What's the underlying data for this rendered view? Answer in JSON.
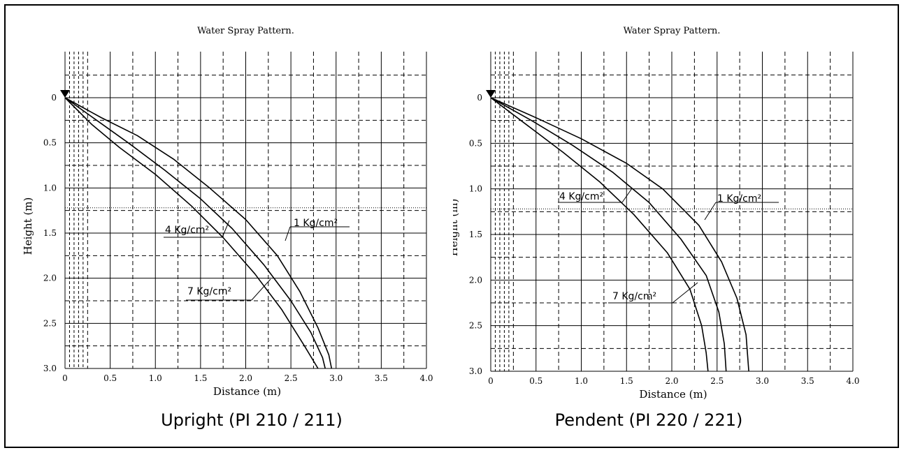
{
  "captions": {
    "left": "Upright (PI 210 / 211)",
    "right": "Pendent (PI 220 / 221)"
  },
  "chart_data": [
    {
      "type": "line",
      "title": "Water Spray Pattern.",
      "xlabel": "Distance (m)",
      "ylabel": "Height (m)",
      "xlim": [
        0,
        4.0
      ],
      "ylim": [
        0,
        3.0
      ],
      "y_inverted": true,
      "x_ticks": [
        "0",
        "0.5",
        "1.0",
        "1.5",
        "2.0",
        "2.5",
        "3.0",
        "3.5",
        "4.0"
      ],
      "y_ticks": [
        "0",
        "0.5",
        "1.0",
        "1.5",
        "2.0",
        "2.5",
        "3.0"
      ],
      "grid": true,
      "series": [
        {
          "name": "1 Kg/cm²",
          "points": [
            [
              0,
              0
            ],
            [
              0.4,
              0.22
            ],
            [
              0.8,
              0.42
            ],
            [
              1.2,
              0.68
            ],
            [
              1.6,
              1.0
            ],
            [
              2.0,
              1.35
            ],
            [
              2.35,
              1.75
            ],
            [
              2.6,
              2.15
            ],
            [
              2.8,
              2.55
            ],
            [
              2.92,
              2.85
            ],
            [
              2.95,
              3.0
            ]
          ]
        },
        {
          "name": "4 Kg/cm²",
          "points": [
            [
              0,
              0
            ],
            [
              0.35,
              0.25
            ],
            [
              0.7,
              0.5
            ],
            [
              1.1,
              0.8
            ],
            [
              1.5,
              1.12
            ],
            [
              1.85,
              1.45
            ],
            [
              2.2,
              1.85
            ],
            [
              2.5,
              2.25
            ],
            [
              2.72,
              2.6
            ],
            [
              2.85,
              2.88
            ],
            [
              2.88,
              3.0
            ]
          ]
        },
        {
          "name": "7 Kg/cm²",
          "points": [
            [
              0,
              0
            ],
            [
              0.3,
              0.3
            ],
            [
              0.6,
              0.55
            ],
            [
              1.0,
              0.85
            ],
            [
              1.4,
              1.2
            ],
            [
              1.75,
              1.55
            ],
            [
              2.1,
              1.95
            ],
            [
              2.4,
              2.35
            ],
            [
              2.65,
              2.75
            ],
            [
              2.8,
              3.0
            ]
          ]
        }
      ],
      "annotations": [
        "1 Kg/cm²",
        "4 Kg/cm²",
        "7 Kg/cm²"
      ]
    },
    {
      "type": "line",
      "title": "Water Spray Pattern.",
      "xlabel": "Distance (m)",
      "ylabel": "Height (m)",
      "xlim": [
        0,
        4.0
      ],
      "ylim": [
        0,
        3.0
      ],
      "y_inverted": true,
      "x_ticks": [
        "0",
        "0.5",
        "1.0",
        "1.5",
        "2.0",
        "2.5",
        "3.0",
        "3.5",
        "4.0"
      ],
      "y_ticks": [
        "0",
        "0.5",
        "1.0",
        "1.5",
        "2.0",
        "2.5",
        "3.0"
      ],
      "grid": true,
      "series": [
        {
          "name": "1 Kg/cm²",
          "points": [
            [
              0,
              0
            ],
            [
              0.5,
              0.22
            ],
            [
              1.0,
              0.45
            ],
            [
              1.5,
              0.72
            ],
            [
              1.9,
              1.0
            ],
            [
              2.3,
              1.4
            ],
            [
              2.55,
              1.8
            ],
            [
              2.72,
              2.2
            ],
            [
              2.82,
              2.6
            ],
            [
              2.85,
              3.0
            ]
          ]
        },
        {
          "name": "4 Kg/cm²",
          "points": [
            [
              0,
              0
            ],
            [
              0.45,
              0.25
            ],
            [
              0.9,
              0.52
            ],
            [
              1.35,
              0.82
            ],
            [
              1.75,
              1.15
            ],
            [
              2.1,
              1.55
            ],
            [
              2.38,
              1.95
            ],
            [
              2.52,
              2.35
            ],
            [
              2.58,
              2.7
            ],
            [
              2.6,
              3.0
            ]
          ]
        },
        {
          "name": "7 Kg/cm²",
          "points": [
            [
              0,
              0
            ],
            [
              0.4,
              0.3
            ],
            [
              0.8,
              0.6
            ],
            [
              1.2,
              0.92
            ],
            [
              1.58,
              1.28
            ],
            [
              1.95,
              1.7
            ],
            [
              2.2,
              2.1
            ],
            [
              2.33,
              2.5
            ],
            [
              2.38,
              2.8
            ],
            [
              2.4,
              3.0
            ]
          ]
        }
      ],
      "annotations": [
        "1 Kg/cm²",
        "4 Kg/cm²",
        "7 Kg/cm²"
      ]
    }
  ]
}
